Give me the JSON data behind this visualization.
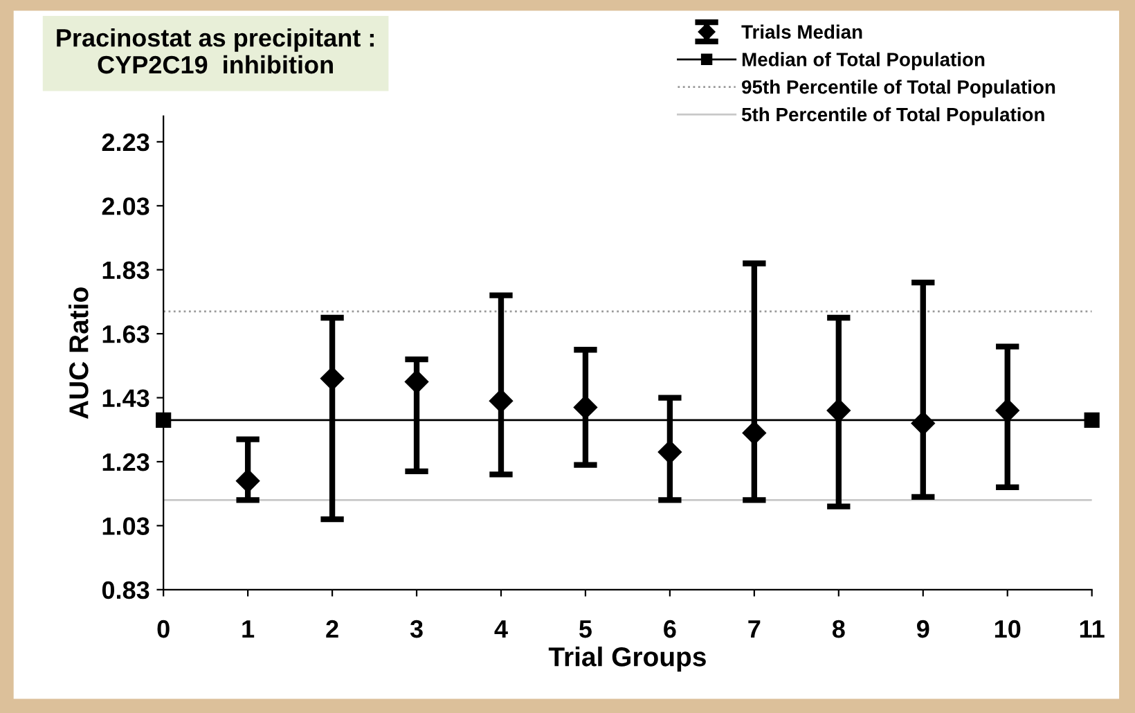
{
  "chart_data": {
    "type": "scatter",
    "title": "Pracinostat as precipitant :\nCYP2C19  inhibition",
    "xlabel": "Trial Groups",
    "ylabel": "AUC Ratio",
    "x": [
      1,
      2,
      3,
      4,
      5,
      6,
      7,
      8,
      9,
      10
    ],
    "series": [
      {
        "name": "Trials Median",
        "color": "#000000",
        "marker": "diamond",
        "values": [
          1.17,
          1.49,
          1.48,
          1.42,
          1.4,
          1.26,
          1.32,
          1.39,
          1.35,
          1.39
        ],
        "errors": [
          [
            1.11,
            1.3
          ],
          [
            1.05,
            1.68
          ],
          [
            1.2,
            1.55
          ],
          [
            1.19,
            1.75
          ],
          [
            1.22,
            1.58
          ],
          [
            1.11,
            1.43
          ],
          [
            1.11,
            1.85
          ],
          [
            1.09,
            1.68
          ],
          [
            1.12,
            1.79
          ],
          [
            1.15,
            1.59
          ]
        ]
      },
      {
        "name": "Median of Total Population",
        "type": "line",
        "color": "#000000",
        "marker": "square",
        "line_style": "solid",
        "x": [
          0,
          11
        ],
        "values": [
          1.36,
          1.36
        ]
      }
    ],
    "ref_lines": [
      {
        "axis": "y",
        "value": 1.7,
        "label": "95th Percentile of Total Population",
        "color": "#999999",
        "line_style": "dotted"
      },
      {
        "axis": "y",
        "value": 1.11,
        "label": "5th Percentile of Total Population",
        "color": "#c8c8c8",
        "line_style": "solid"
      }
    ],
    "xlim": [
      0,
      11
    ],
    "xticks": [
      0,
      1,
      2,
      3,
      4,
      5,
      6,
      7,
      8,
      9,
      10,
      11
    ],
    "ylim": [
      0.83,
      2.31
    ],
    "yticks": [
      0.83,
      1.03,
      1.23,
      1.43,
      1.63,
      1.83,
      2.03,
      2.23
    ],
    "grid": false,
    "legend": "top right"
  }
}
